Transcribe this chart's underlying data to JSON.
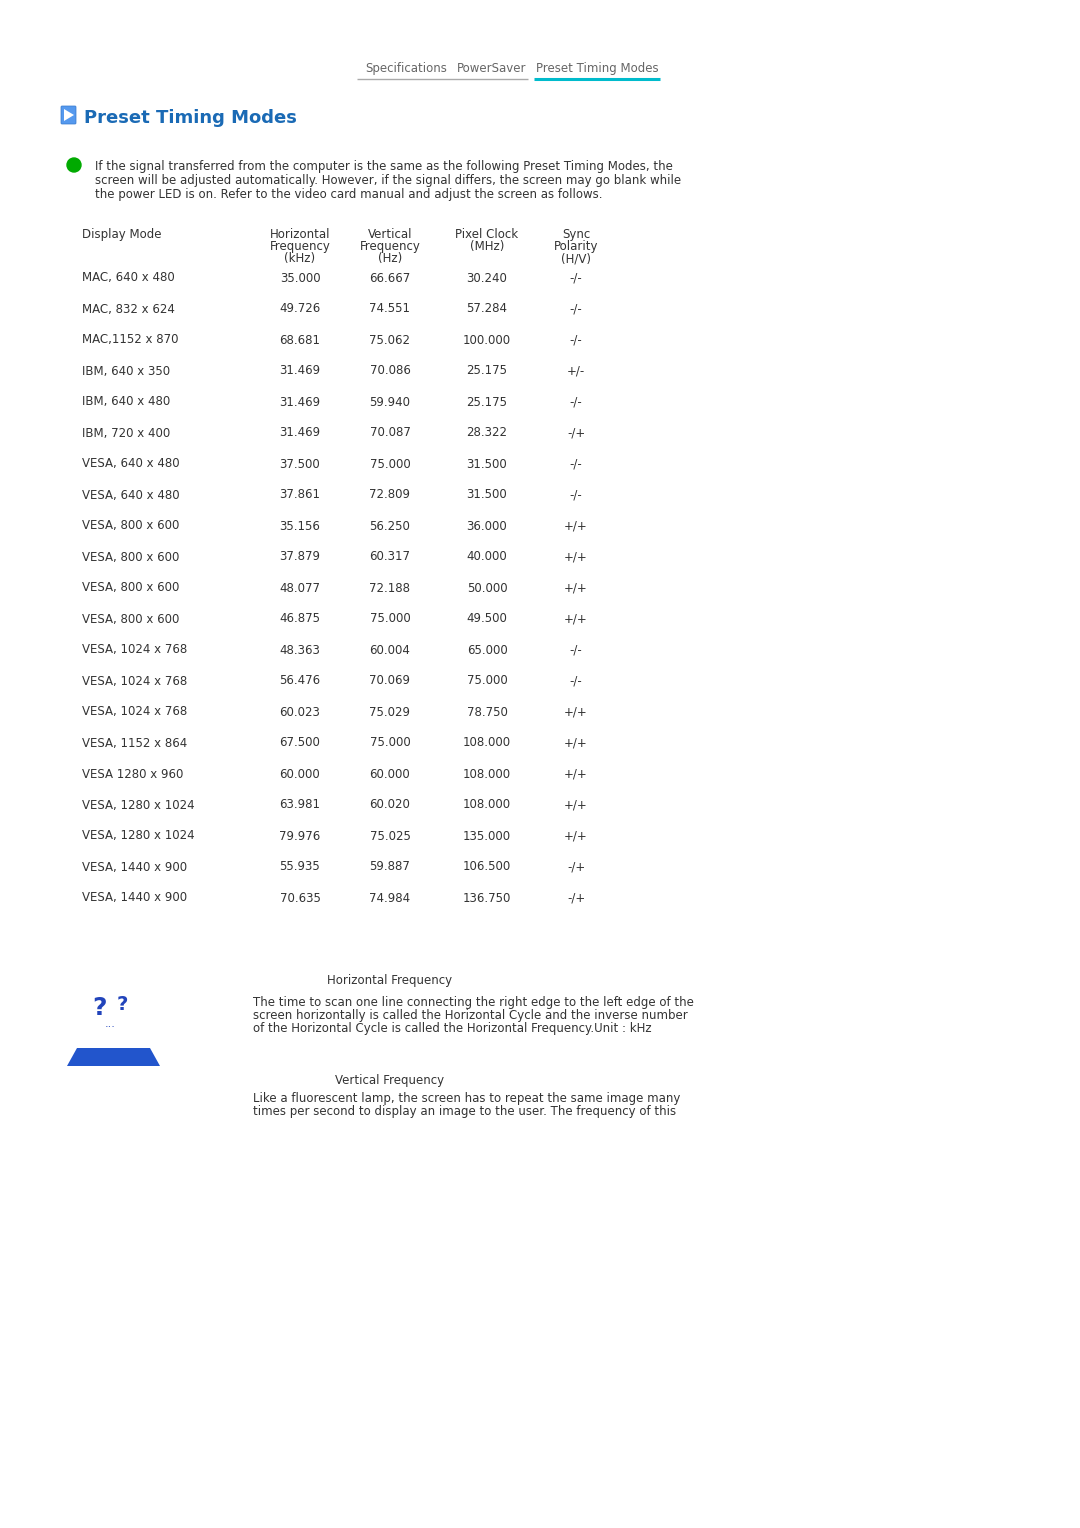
{
  "nav_items": [
    "Specifications",
    "PowerSaver",
    "Preset Timing Modes"
  ],
  "nav_active_color": "#00BBCC",
  "nav_inactive_color": "#666666",
  "page_title": "Preset Timing Modes",
  "title_color": "#1a6ab5",
  "intro_bullet_color": "#00AA00",
  "col_headers": [
    "Display Mode",
    "Horizontal\nFrequency\n(kHz)",
    "Vertical\nFrequency\n(Hz)",
    "Pixel Clock\n(MHz)",
    "Sync\nPolarity\n(H/V)"
  ],
  "table_data": [
    [
      "MAC, 640 x 480",
      "35.000",
      "66.667",
      "30.240",
      "-/-"
    ],
    [
      "MAC, 832 x 624",
      "49.726",
      "74.551",
      "57.284",
      "-/-"
    ],
    [
      "MAC,1152 x 870",
      "68.681",
      "75.062",
      "100.000",
      "-/-"
    ],
    [
      "IBM, 640 x 350",
      "31.469",
      "70.086",
      "25.175",
      "+/-"
    ],
    [
      "IBM, 640 x 480",
      "31.469",
      "59.940",
      "25.175",
      "-/-"
    ],
    [
      "IBM, 720 x 400",
      "31.469",
      "70.087",
      "28.322",
      "-/+"
    ],
    [
      "VESA, 640 x 480",
      "37.500",
      "75.000",
      "31.500",
      "-/-"
    ],
    [
      "VESA, 640 x 480",
      "37.861",
      "72.809",
      "31.500",
      "-/-"
    ],
    [
      "VESA, 800 x 600",
      "35.156",
      "56.250",
      "36.000",
      "+/+"
    ],
    [
      "VESA, 800 x 600",
      "37.879",
      "60.317",
      "40.000",
      "+/+"
    ],
    [
      "VESA, 800 x 600",
      "48.077",
      "72.188",
      "50.000",
      "+/+"
    ],
    [
      "VESA, 800 x 600",
      "46.875",
      "75.000",
      "49.500",
      "+/+"
    ],
    [
      "VESA, 1024 x 768",
      "48.363",
      "60.004",
      "65.000",
      "-/-"
    ],
    [
      "VESA, 1024 x 768",
      "56.476",
      "70.069",
      "75.000",
      "-/-"
    ],
    [
      "VESA, 1024 x 768",
      "60.023",
      "75.029",
      "78.750",
      "+/+"
    ],
    [
      "VESA, 1152 x 864",
      "67.500",
      "75.000",
      "108.000",
      "+/+"
    ],
    [
      "VESA 1280 x 960",
      "60.000",
      "60.000",
      "108.000",
      "+/+"
    ],
    [
      "VESA, 1280 x 1024",
      "63.981",
      "60.020",
      "108.000",
      "+/+"
    ],
    [
      "VESA, 1280 x 1024",
      "79.976",
      "75.025",
      "135.000",
      "+/+"
    ],
    [
      "VESA, 1440 x 900",
      "55.935",
      "59.887",
      "106.500",
      "-/+"
    ],
    [
      "VESA, 1440 x 900",
      "70.635",
      "74.984",
      "136.750",
      "-/+"
    ]
  ],
  "footer_heading1": "Horizontal Frequency",
  "footer_text1_lines": [
    "The time to scan one line connecting the right edge to the left edge of the",
    "screen horizontally is called the Horizontal Cycle and the inverse number",
    "of the Horizontal Cycle is called the Horizontal Frequency.Unit : kHz"
  ],
  "footer_heading2": "Vertical Frequency",
  "footer_text2_lines": [
    "Like a fluorescent lamp, the screen has to repeat the same image many",
    "times per second to display an image to the user. The frequency of this"
  ],
  "bg_color": "#ffffff",
  "text_color": "#333333",
  "font_size_nav": 8.5,
  "font_size_title": 13,
  "font_size_table": 8.5,
  "font_size_intro": 8.5,
  "font_size_footer_head": 8.5,
  "font_size_footer": 8.5
}
